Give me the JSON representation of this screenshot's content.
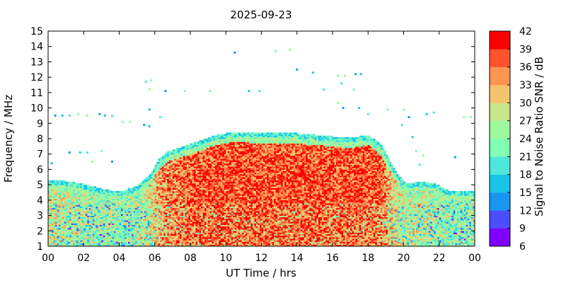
{
  "chart_data": {
    "type": "heatmap",
    "title": "2025-09-23",
    "xlabel": "UT Time / hrs",
    "ylabel": "Frequency / MHz",
    "colorbar_label": "Signal to Noise Ratio SNR / dB",
    "xlim": [
      0,
      24
    ],
    "ylim": [
      1,
      15
    ],
    "x_ticks": [
      "00",
      "02",
      "04",
      "06",
      "08",
      "10",
      "12",
      "14",
      "16",
      "18",
      "20",
      "22",
      "00"
    ],
    "x_tick_values": [
      0,
      2,
      4,
      6,
      8,
      10,
      12,
      14,
      16,
      18,
      20,
      22,
      24
    ],
    "y_ticks": [
      "1",
      "2",
      "3",
      "4",
      "5",
      "6",
      "7",
      "8",
      "9",
      "10",
      "11",
      "12",
      "13",
      "14",
      "15"
    ],
    "y_tick_values": [
      1,
      2,
      3,
      4,
      5,
      6,
      7,
      8,
      9,
      10,
      11,
      12,
      13,
      14,
      15
    ],
    "colorbar_ticks": [
      "6",
      "9",
      "12",
      "15",
      "18",
      "21",
      "24",
      "27",
      "30",
      "33",
      "36",
      "39",
      "42"
    ],
    "colorbar_range": [
      6,
      42
    ],
    "colorbar_levels": [
      "#7f00ff",
      "#4b4dfe",
      "#1995f2",
      "#1ac4e9",
      "#4de7dc",
      "#80feb3",
      "#9ef99d",
      "#c9e68b",
      "#f4c36d",
      "#ff9550",
      "#ff5330",
      "#ff0000"
    ],
    "grid": false,
    "band_structure": {
      "lower_band_top_mhz": [
        [
          0,
          5.3
        ],
        [
          1,
          5.2
        ],
        [
          2,
          5.0
        ],
        [
          3,
          4.7
        ],
        [
          4,
          4.5
        ],
        [
          5,
          4.9
        ],
        [
          5.7,
          5.6
        ],
        [
          6.2,
          6.6
        ],
        [
          6.7,
          7.1
        ],
        [
          7.5,
          7.4
        ],
        [
          8.5,
          7.8
        ],
        [
          9.5,
          8.2
        ],
        [
          10.5,
          8.4
        ],
        [
          12,
          8.3
        ],
        [
          13,
          8.3
        ],
        [
          14,
          8.3
        ],
        [
          15,
          8.2
        ],
        [
          16,
          8.1
        ],
        [
          17,
          8.0
        ],
        [
          18,
          8.2
        ],
        [
          18.7,
          7.6
        ],
        [
          19.2,
          6.6
        ],
        [
          19.7,
          5.6
        ],
        [
          20.2,
          5.0
        ],
        [
          21,
          5.2
        ],
        [
          21.8,
          5.0
        ],
        [
          22.5,
          4.6
        ],
        [
          24,
          4.5
        ]
      ],
      "scatter_points_mhz": [
        [
          0.4,
          9.5
        ],
        [
          0.8,
          9.5
        ],
        [
          1.2,
          9.5
        ],
        [
          1.7,
          9.6
        ],
        [
          2.2,
          9.5
        ],
        [
          2.9,
          9.6
        ],
        [
          3.2,
          9.5
        ],
        [
          3.6,
          9.5
        ],
        [
          4.2,
          9.1
        ],
        [
          4.6,
          9.1
        ],
        [
          5.4,
          8.9
        ],
        [
          5.7,
          8.8
        ],
        [
          5.5,
          11.7
        ],
        [
          5.8,
          11.8
        ],
        [
          5.7,
          11.2
        ],
        [
          6.6,
          11.1
        ],
        [
          5.7,
          9.9
        ],
        [
          6.3,
          9.4
        ],
        [
          7.7,
          11.1
        ],
        [
          9.1,
          11.1
        ],
        [
          10.5,
          13.6
        ],
        [
          11.3,
          11.1
        ],
        [
          11.9,
          11.1
        ],
        [
          12.8,
          13.7
        ],
        [
          13.6,
          13.8
        ],
        [
          14.0,
          12.5
        ],
        [
          14.9,
          12.3
        ],
        [
          15.5,
          11.2
        ],
        [
          16.3,
          12.1
        ],
        [
          16.7,
          12.1
        ],
        [
          17.3,
          12.2
        ],
        [
          17.6,
          12.2
        ],
        [
          16.5,
          11.6
        ],
        [
          17.2,
          11.2
        ],
        [
          16.3,
          10.3
        ],
        [
          16.6,
          10.0
        ],
        [
          17.5,
          10.0
        ],
        [
          18.0,
          9.6
        ],
        [
          19.1,
          9.9
        ],
        [
          20.0,
          9.9
        ],
        [
          20.3,
          9.4
        ],
        [
          21.3,
          9.6
        ],
        [
          21.7,
          9.7
        ],
        [
          23.4,
          9.4
        ],
        [
          23.8,
          9.4
        ],
        [
          1.2,
          7.1
        ],
        [
          1.8,
          7.1
        ],
        [
          2.2,
          7.1
        ],
        [
          3.0,
          7.2
        ],
        [
          2.5,
          6.5
        ],
        [
          3.6,
          6.5
        ],
        [
          0.2,
          6.4
        ],
        [
          19.9,
          8.9
        ],
        [
          20.7,
          7.2
        ],
        [
          21.1,
          6.9
        ],
        [
          22.9,
          6.8
        ],
        [
          20.5,
          8.1
        ],
        [
          20.9,
          6.3
        ]
      ]
    }
  }
}
